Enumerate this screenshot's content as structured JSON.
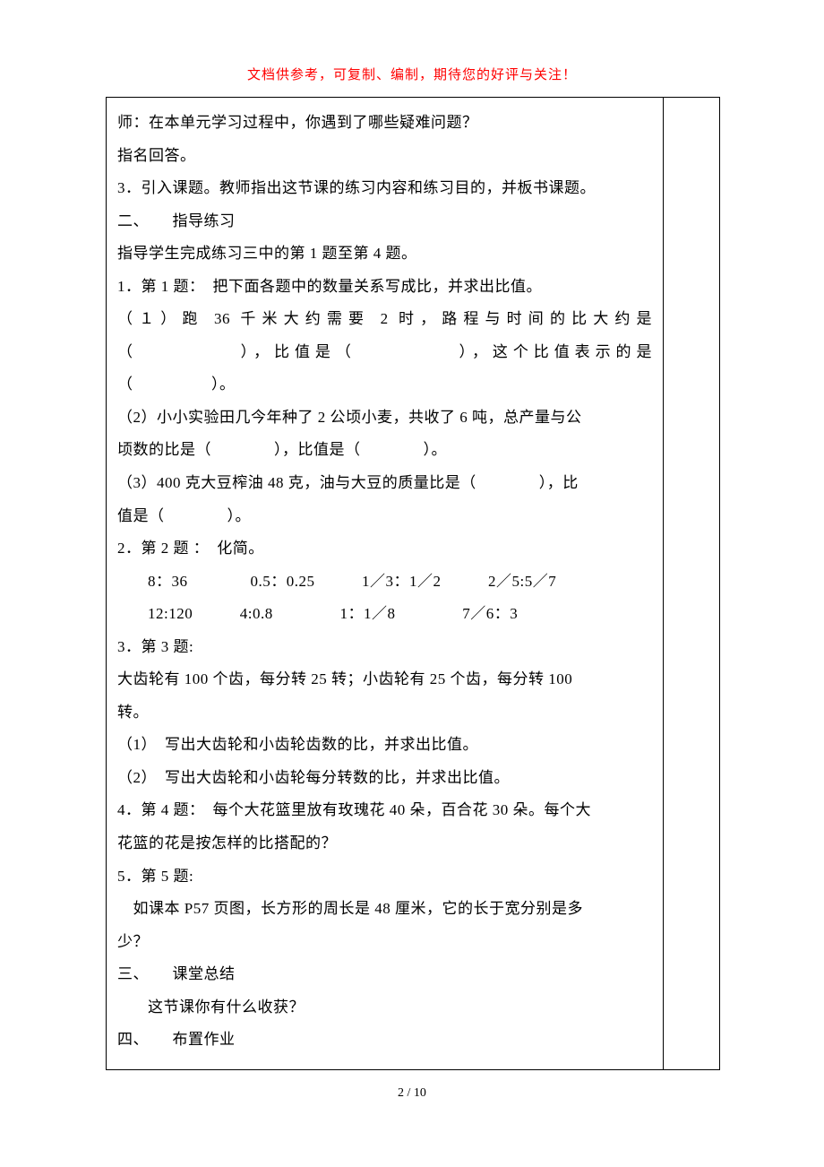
{
  "header": {
    "note": "文档供参考，可复制、编制，期待您的好评与关注！"
  },
  "content": {
    "lines": [
      {
        "text": "师：在本单元学习过程中，你遇到了哪些疑难问题？",
        "class": ""
      },
      {
        "text": "指名回答。",
        "class": ""
      },
      {
        "text": "3．引入课题。教师指出这节课的练习内容和练习目的，并板书课题。",
        "class": ""
      },
      {
        "text": "二、　　指导练习",
        "class": ""
      },
      {
        "text": "指导学生完成练习三中的第 1 题至第 4 题。",
        "class": ""
      },
      {
        "text": "1．第 1 题：　把下面各题中的数量关系写成比，并求出比值。",
        "class": ""
      },
      {
        "text": "（１）跑 36 千米大约需要 2 时，路程与时间的比大约是",
        "class": "justified"
      },
      {
        "text": "（　　　　　），比值是（　　　　　），这个比值表示的是",
        "class": "justified"
      },
      {
        "text": "（　　　　　）。",
        "class": ""
      },
      {
        "text": "（2）小小实验田几今年种了 2 公顷小麦，共收了 6 吨，总产量与公",
        "class": ""
      },
      {
        "text": "顷数的比是（　　　　），比值是（　　　　）。",
        "class": ""
      },
      {
        "text": "（3）400 克大豆榨油 48 克，油与大豆的质量比是（　　　　），比",
        "class": ""
      },
      {
        "text": "值是（　　　　）。",
        "class": ""
      },
      {
        "text": "2．第 2 题 ：　化简。",
        "class": ""
      },
      {
        "text": "8：36　　　　0.5：0.25　　　1／3：1／2　　　2／5:5／7",
        "class": "indent3"
      },
      {
        "text": "12:120　　　4:0.8　　　　 1：1／8　　　　 7／6：3",
        "class": "indent3"
      },
      {
        "text": "3．第 3 题:",
        "class": ""
      },
      {
        "text": " 大齿轮有 100 个齿，每分转 25 转；小齿轮有 25 个齿，每分转 100",
        "class": ""
      },
      {
        "text": "转。",
        "class": ""
      },
      {
        "text": "（1）　写出大齿轮和小齿轮齿数的比，并求出比值。",
        "class": ""
      },
      {
        "text": "（2）　写出大齿轮和小齿轮每分转数的比，并求出比值。",
        "class": ""
      },
      {
        "text": "4．第 4 题：　每个大花篮里放有玫瑰花 40 朵，百合花 30 朵。每个大",
        "class": ""
      },
      {
        "text": "花篮的花是按怎样的比搭配的？",
        "class": ""
      },
      {
        "text": "5．第 5 题:",
        "class": ""
      },
      {
        "text": "　如课本 P57 页图，长方形的周长是 48 厘米，它的长于宽分别是多",
        "class": ""
      },
      {
        "text": "少？",
        "class": ""
      },
      {
        "text": "三、　　课堂总结",
        "class": ""
      },
      {
        "text": "这节课你有什么收获？",
        "class": "indent3"
      },
      {
        "text": "四、　　布置作业",
        "class": ""
      }
    ]
  },
  "footer": {
    "page": "2 / 10"
  }
}
